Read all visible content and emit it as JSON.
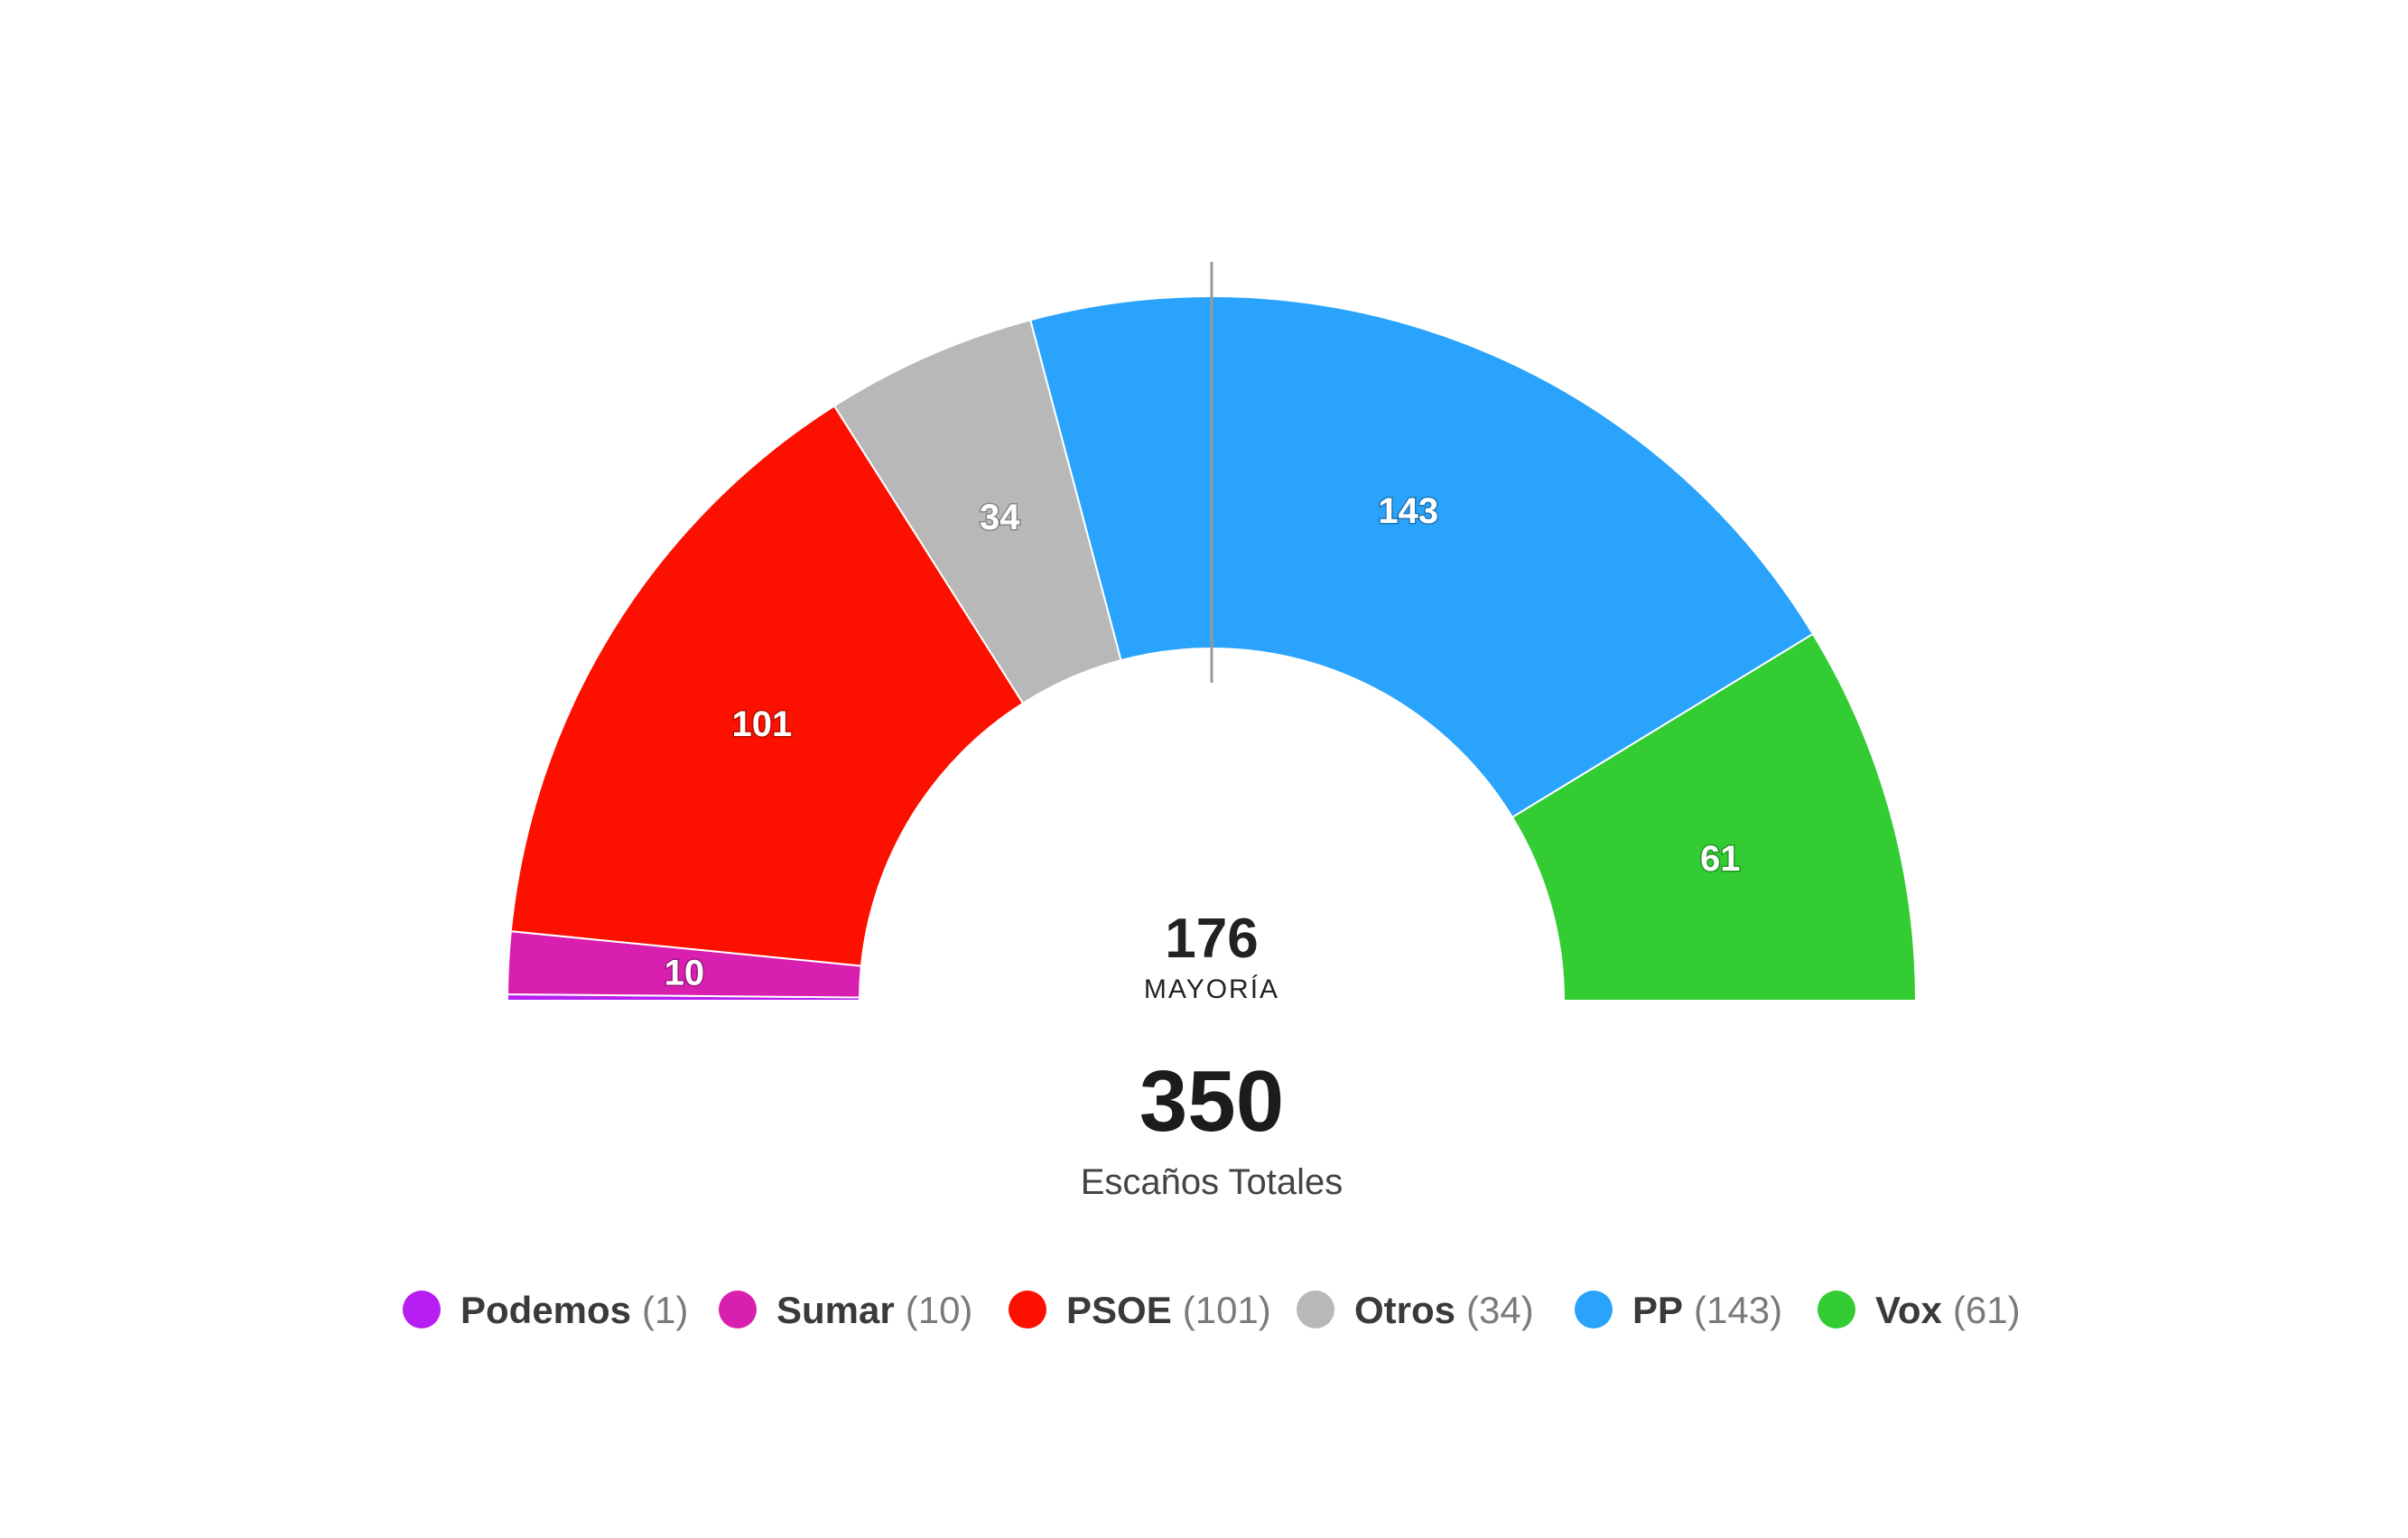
{
  "chart_data": {
    "type": "pie",
    "subtype": "parliament-semicircle",
    "total": 350,
    "total_label": "Escaños Totales",
    "majority": 176,
    "majority_label": "MAYORÍA",
    "categories": [
      "Podemos",
      "Sumar",
      "PSOE",
      "Otros",
      "PP",
      "Vox"
    ],
    "values": [
      1,
      10,
      101,
      34,
      143,
      61
    ],
    "slice_labels": [
      "",
      "10",
      "101",
      "34",
      "143",
      "61"
    ],
    "colors": [
      "#b61ef2",
      "#d81faf",
      "#fc1100",
      "#b8b8b8",
      "#29a3fb",
      "#33cc33"
    ],
    "legend": {
      "placement": "bottom",
      "items": [
        {
          "name": "Podemos",
          "count": "(1)"
        },
        {
          "name": "Sumar",
          "count": "(10)"
        },
        {
          "name": "PSOE",
          "count": "(101)"
        },
        {
          "name": "Otros",
          "count": "(34)"
        },
        {
          "name": "PP",
          "count": "(143)"
        },
        {
          "name": "Vox",
          "count": "(61)"
        }
      ]
    },
    "majority_line_color": "#999999"
  }
}
